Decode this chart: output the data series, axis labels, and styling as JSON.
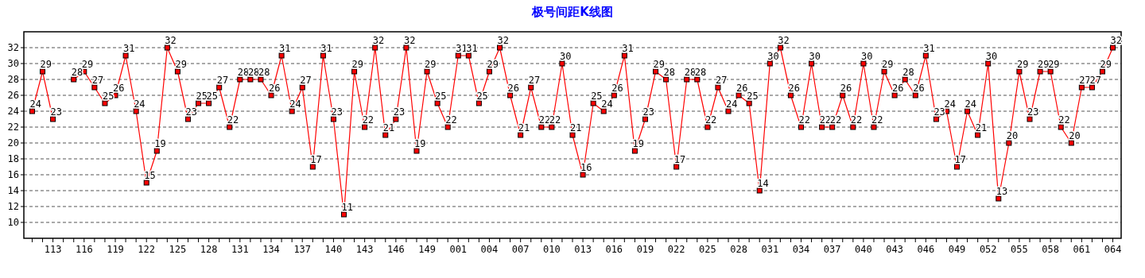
{
  "chart_data": {
    "type": "line",
    "title": "极号间距K线图",
    "categories": [
      null,
      null,
      "113",
      null,
      null,
      "116",
      null,
      null,
      "119",
      null,
      null,
      "122",
      null,
      null,
      "125",
      null,
      null,
      "128",
      null,
      null,
      "131",
      null,
      null,
      "134",
      null,
      null,
      "137",
      null,
      null,
      "140",
      null,
      null,
      "143",
      null,
      null,
      "146",
      null,
      null,
      "149",
      null,
      null,
      "001",
      null,
      null,
      "004",
      null,
      null,
      "007",
      null,
      null,
      "010",
      null,
      null,
      "013",
      null,
      null,
      "016",
      null,
      null,
      "019",
      null,
      null,
      "022",
      null,
      null,
      "025",
      null,
      null,
      "028",
      null,
      null,
      "031",
      null,
      null,
      "034",
      null,
      null,
      "037",
      null,
      null,
      "040",
      null,
      null,
      "043",
      null,
      null,
      "046",
      null,
      null,
      "049",
      null,
      null,
      "052",
      null,
      null,
      "055",
      null,
      null,
      "058",
      null,
      null,
      "061",
      null,
      null,
      "064"
    ],
    "series": [
      {
        "color": "#ff0000",
        "values": [
          24,
          29,
          23,
          null,
          28,
          29,
          27,
          25,
          26,
          31,
          24,
          15,
          19,
          32,
          29,
          23,
          25,
          25,
          27,
          22,
          28,
          28,
          28,
          26,
          31,
          24,
          27,
          17,
          31,
          23,
          11,
          29,
          22,
          32,
          21,
          23,
          32,
          19,
          29,
          25,
          22,
          31,
          31,
          25,
          29,
          32,
          26,
          21,
          27,
          22,
          22,
          30,
          21,
          16,
          25,
          24,
          26,
          31,
          19,
          23,
          29,
          28,
          17,
          28,
          28,
          22,
          27,
          24,
          26,
          25,
          14,
          30,
          32,
          26,
          22,
          30,
          22,
          22,
          26,
          22,
          30,
          22,
          29,
          26,
          28,
          26,
          31,
          23,
          24,
          17,
          24,
          21,
          30,
          13,
          20,
          29,
          23,
          29,
          29,
          22,
          20,
          27,
          27,
          29,
          32
        ]
      }
    ],
    "ylim": [
      8,
      34
    ],
    "yticks": [
      10,
      12,
      14,
      16,
      18,
      20,
      22,
      24,
      26,
      28,
      30,
      32
    ],
    "grid": "y",
    "marker": "square",
    "line_style": "solid",
    "data_labels": true
  }
}
